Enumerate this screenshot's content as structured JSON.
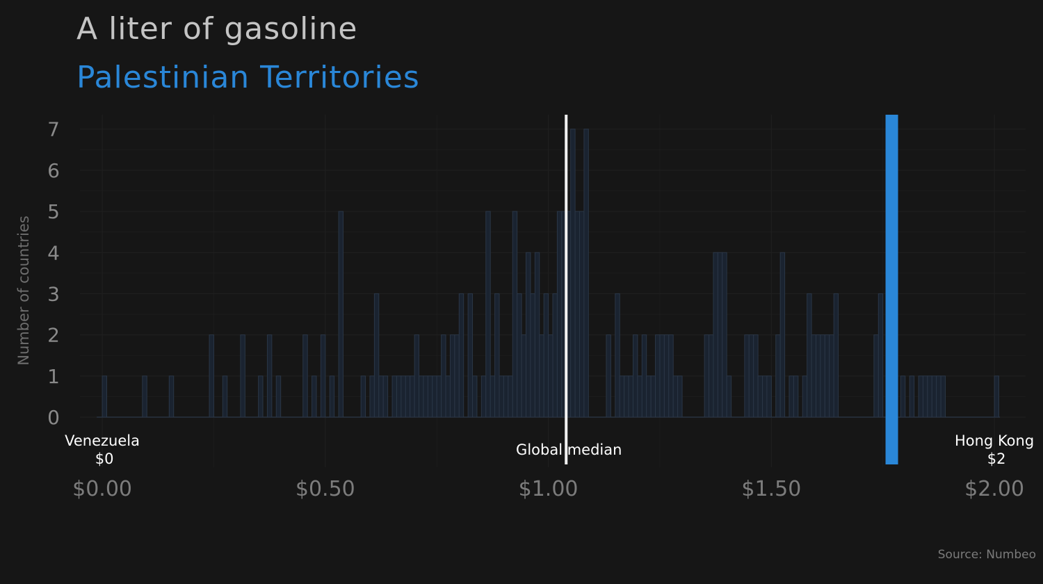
{
  "title": "A liter of gasoline",
  "subtitle": "Palestinian Territories",
  "source": "Source: Numbeo",
  "colors": {
    "background": "#161616",
    "highlight": "#2a87d8",
    "bar_fill": "#1a2330",
    "bar_stroke": "#2a3646",
    "median_line": "#f2f2f2",
    "grid": "#1e1e1e"
  },
  "chart_data": {
    "type": "bar",
    "ylabel": "Number of countries",
    "xlabel": "",
    "xlim": [
      -0.05,
      2.07
    ],
    "ylim": [
      0,
      7.35
    ],
    "bin_width": 0.01,
    "y_ticks": [
      0,
      1,
      2,
      3,
      4,
      5,
      6,
      7
    ],
    "x_ticks": [
      0.0,
      0.5,
      1.0,
      1.5,
      2.0
    ],
    "x_tick_labels": [
      "$0.00",
      "$0.50",
      "$1.00",
      "$1.50",
      "$2.00"
    ],
    "grid": true,
    "bins": [
      {
        "x": 0.0,
        "count": 1
      },
      {
        "x": 0.09,
        "count": 1
      },
      {
        "x": 0.15,
        "count": 1
      },
      {
        "x": 0.24,
        "count": 2
      },
      {
        "x": 0.27,
        "count": 1
      },
      {
        "x": 0.31,
        "count": 2
      },
      {
        "x": 0.35,
        "count": 1
      },
      {
        "x": 0.37,
        "count": 2
      },
      {
        "x": 0.39,
        "count": 1
      },
      {
        "x": 0.45,
        "count": 2
      },
      {
        "x": 0.47,
        "count": 1
      },
      {
        "x": 0.49,
        "count": 2
      },
      {
        "x": 0.51,
        "count": 1
      },
      {
        "x": 0.53,
        "count": 5
      },
      {
        "x": 0.58,
        "count": 1
      },
      {
        "x": 0.6,
        "count": 1
      },
      {
        "x": 0.61,
        "count": 3
      },
      {
        "x": 0.62,
        "count": 1
      },
      {
        "x": 0.63,
        "count": 1
      },
      {
        "x": 0.65,
        "count": 1
      },
      {
        "x": 0.66,
        "count": 1
      },
      {
        "x": 0.67,
        "count": 1
      },
      {
        "x": 0.68,
        "count": 1
      },
      {
        "x": 0.69,
        "count": 1
      },
      {
        "x": 0.7,
        "count": 2
      },
      {
        "x": 0.71,
        "count": 1
      },
      {
        "x": 0.72,
        "count": 1
      },
      {
        "x": 0.73,
        "count": 1
      },
      {
        "x": 0.74,
        "count": 1
      },
      {
        "x": 0.75,
        "count": 1
      },
      {
        "x": 0.76,
        "count": 2
      },
      {
        "x": 0.77,
        "count": 1
      },
      {
        "x": 0.78,
        "count": 2
      },
      {
        "x": 0.79,
        "count": 2
      },
      {
        "x": 0.8,
        "count": 3
      },
      {
        "x": 0.82,
        "count": 3
      },
      {
        "x": 0.83,
        "count": 1
      },
      {
        "x": 0.85,
        "count": 1
      },
      {
        "x": 0.86,
        "count": 5
      },
      {
        "x": 0.87,
        "count": 1
      },
      {
        "x": 0.88,
        "count": 3
      },
      {
        "x": 0.89,
        "count": 1
      },
      {
        "x": 0.9,
        "count": 1
      },
      {
        "x": 0.91,
        "count": 1
      },
      {
        "x": 0.92,
        "count": 5
      },
      {
        "x": 0.93,
        "count": 3
      },
      {
        "x": 0.94,
        "count": 2
      },
      {
        "x": 0.95,
        "count": 4
      },
      {
        "x": 0.96,
        "count": 3
      },
      {
        "x": 0.97,
        "count": 4
      },
      {
        "x": 0.98,
        "count": 2
      },
      {
        "x": 0.99,
        "count": 3
      },
      {
        "x": 1.0,
        "count": 2
      },
      {
        "x": 1.01,
        "count": 3
      },
      {
        "x": 1.02,
        "count": 5
      },
      {
        "x": 1.03,
        "count": 5
      },
      {
        "x": 1.04,
        "count": 5
      },
      {
        "x": 1.05,
        "count": 7
      },
      {
        "x": 1.06,
        "count": 5
      },
      {
        "x": 1.07,
        "count": 5
      },
      {
        "x": 1.08,
        "count": 7
      },
      {
        "x": 1.13,
        "count": 2
      },
      {
        "x": 1.15,
        "count": 3
      },
      {
        "x": 1.16,
        "count": 1
      },
      {
        "x": 1.17,
        "count": 1
      },
      {
        "x": 1.18,
        "count": 1
      },
      {
        "x": 1.19,
        "count": 2
      },
      {
        "x": 1.2,
        "count": 1
      },
      {
        "x": 1.21,
        "count": 2
      },
      {
        "x": 1.22,
        "count": 1
      },
      {
        "x": 1.23,
        "count": 1
      },
      {
        "x": 1.24,
        "count": 2
      },
      {
        "x": 1.25,
        "count": 2
      },
      {
        "x": 1.26,
        "count": 2
      },
      {
        "x": 1.27,
        "count": 2
      },
      {
        "x": 1.28,
        "count": 1
      },
      {
        "x": 1.29,
        "count": 1
      },
      {
        "x": 1.35,
        "count": 2
      },
      {
        "x": 1.36,
        "count": 2
      },
      {
        "x": 1.37,
        "count": 4
      },
      {
        "x": 1.38,
        "count": 4
      },
      {
        "x": 1.39,
        "count": 4
      },
      {
        "x": 1.4,
        "count": 1
      },
      {
        "x": 1.44,
        "count": 2
      },
      {
        "x": 1.45,
        "count": 2
      },
      {
        "x": 1.46,
        "count": 2
      },
      {
        "x": 1.47,
        "count": 1
      },
      {
        "x": 1.48,
        "count": 1
      },
      {
        "x": 1.49,
        "count": 1
      },
      {
        "x": 1.51,
        "count": 2
      },
      {
        "x": 1.52,
        "count": 4
      },
      {
        "x": 1.54,
        "count": 1
      },
      {
        "x": 1.55,
        "count": 1
      },
      {
        "x": 1.57,
        "count": 1
      },
      {
        "x": 1.58,
        "count": 3
      },
      {
        "x": 1.59,
        "count": 2
      },
      {
        "x": 1.6,
        "count": 2
      },
      {
        "x": 1.61,
        "count": 2
      },
      {
        "x": 1.62,
        "count": 2
      },
      {
        "x": 1.63,
        "count": 2
      },
      {
        "x": 1.64,
        "count": 3
      },
      {
        "x": 1.73,
        "count": 2
      },
      {
        "x": 1.74,
        "count": 3
      },
      {
        "x": 1.76,
        "count": 2
      },
      {
        "x": 1.79,
        "count": 1
      },
      {
        "x": 1.81,
        "count": 1
      },
      {
        "x": 1.83,
        "count": 1
      },
      {
        "x": 1.84,
        "count": 1
      },
      {
        "x": 1.85,
        "count": 1
      },
      {
        "x": 1.86,
        "count": 1
      },
      {
        "x": 1.87,
        "count": 1
      },
      {
        "x": 1.88,
        "count": 1
      },
      {
        "x": 2.0,
        "count": 1
      }
    ],
    "highlight": {
      "name": "Palestinian Territories",
      "value": 1.77
    },
    "median": {
      "label": "Global median",
      "value": 1.04
    },
    "annotations": [
      {
        "country": "Venezuela",
        "price_label": "$0",
        "value": 0.0
      },
      {
        "country": "Hong Kong",
        "price_label": "$2",
        "value": 2.0
      }
    ]
  }
}
